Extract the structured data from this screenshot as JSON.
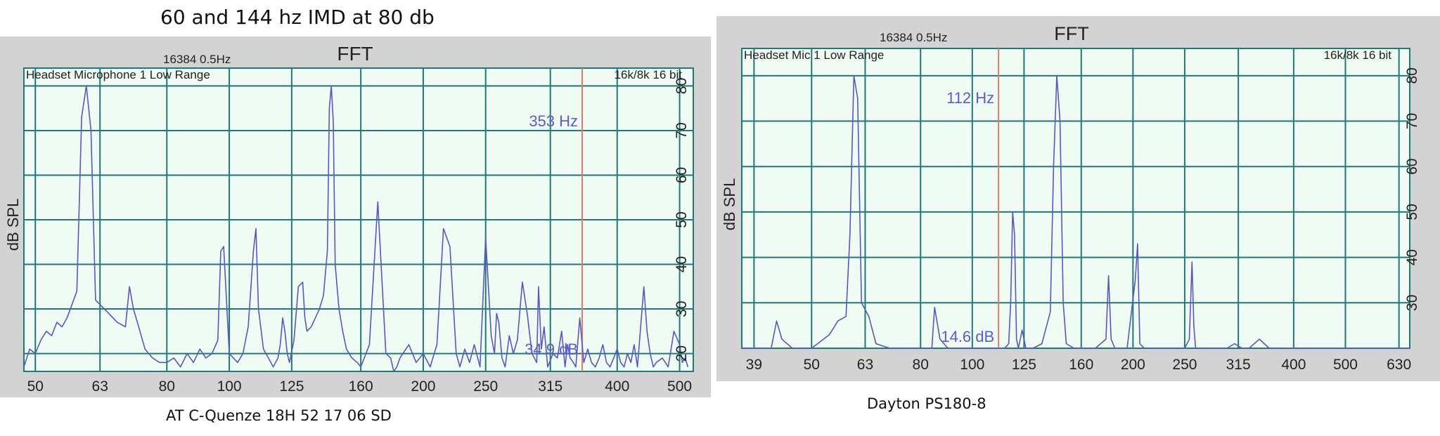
{
  "figure_title": "60 and 144 hz IMD at 80 db",
  "colors": {
    "background": "#f0fbf4",
    "grid": "#1f7a75",
    "trace": "#5757c8",
    "cursor": "#e07a6a",
    "readout": "#5b5bd6",
    "frame": "#d3d3d3"
  },
  "chart_data": [
    {
      "type": "line",
      "title": "FFT",
      "header": "16384  0.5Hz",
      "inner_label": "Headset Microphone 1 Low Range",
      "inner_right_label": "16k/8k 16 bit",
      "ylabel": "dB SPL",
      "xlabel": "",
      "x_scale": "log",
      "xlim": [
        48,
        525
      ],
      "ylim": [
        16,
        84
      ],
      "x_ticks": [
        50,
        63,
        80,
        100,
        125,
        160,
        200,
        250,
        315,
        400,
        500
      ],
      "x_tick_labels": [
        "50",
        "63",
        "80",
        "100",
        "125",
        "160",
        "200",
        "250",
        "315",
        "400",
        "500"
      ],
      "y_ticks": [
        20,
        30,
        40,
        50,
        60,
        70,
        80
      ],
      "y_tick_labels": [
        "20",
        "30",
        "40",
        "50",
        "60",
        "70",
        "80"
      ],
      "cursor": {
        "x": 353,
        "freq_label": "353 Hz",
        "level_label": "34.9 dB"
      },
      "caption": "AT C-Quenze 18H 52 17 06 SD",
      "series": [
        {
          "x": [
            48,
            49,
            50,
            51,
            52,
            53,
            54,
            55,
            56,
            57,
            58,
            59,
            60,
            61,
            62,
            63,
            65,
            67,
            69,
            70,
            71,
            72,
            74,
            76,
            78,
            80,
            82,
            84,
            86,
            88,
            90,
            92,
            94,
            96,
            97,
            98,
            100,
            103,
            105,
            107,
            109,
            110,
            111,
            113,
            115,
            117,
            119,
            120,
            121,
            122,
            123,
            124,
            126,
            128,
            130,
            131,
            132,
            134,
            136,
            138,
            140,
            142,
            143,
            144,
            145,
            146,
            148,
            150,
            152,
            155,
            158,
            160,
            165,
            170,
            175,
            178,
            180,
            182,
            184,
            190,
            195,
            200,
            205,
            210,
            215,
            220,
            225,
            228,
            232,
            236,
            240,
            245,
            250,
            255,
            258,
            260,
            262,
            265,
            268,
            272,
            276,
            280,
            285,
            290,
            295,
            300,
            302,
            305,
            308,
            312,
            318,
            323,
            328,
            332,
            335,
            338,
            342,
            345,
            350,
            355,
            360,
            365,
            370,
            375,
            380,
            385,
            390,
            395,
            400,
            405,
            410,
            415,
            420,
            425,
            430,
            440,
            445,
            450,
            455,
            460,
            470,
            480,
            490,
            500,
            505,
            510,
            515
          ],
          "y": [
            17,
            21,
            20,
            23,
            25,
            24,
            27,
            26,
            28,
            31,
            34,
            73,
            80,
            70,
            32,
            31,
            29,
            27,
            26,
            35,
            30,
            27,
            21,
            19,
            18,
            18,
            19,
            17,
            20,
            18,
            21,
            19,
            20,
            23,
            43,
            44,
            20,
            18,
            20,
            26,
            43,
            48,
            30,
            21,
            19,
            17,
            19,
            22,
            28,
            25,
            20,
            18,
            23,
            35,
            36,
            28,
            25,
            26,
            28,
            30,
            33,
            43,
            75,
            80,
            72,
            40,
            30,
            25,
            21,
            19,
            18,
            17,
            22,
            54,
            20,
            19,
            16,
            17,
            19,
            22,
            18,
            20,
            17,
            22,
            48,
            44,
            20,
            17,
            21,
            18,
            22,
            17,
            46,
            24,
            20,
            29,
            27,
            19,
            17,
            24,
            20,
            23,
            36,
            29,
            20,
            18,
            35,
            21,
            26,
            17,
            20,
            19,
            25,
            17,
            22,
            19,
            18,
            17,
            28,
            18,
            21,
            18,
            17,
            19,
            22,
            18,
            17,
            19,
            21,
            18,
            17,
            20,
            18,
            22,
            17,
            35,
            25,
            20,
            17,
            18,
            19,
            17,
            25,
            22,
            18,
            19,
            17
          ]
        }
      ]
    },
    {
      "type": "line",
      "title": "FFT",
      "header": "16384  0.5Hz",
      "inner_label": "Headset Mic 1 Low Range",
      "inner_right_label": "16k/8k 16 bit",
      "ylabel": "dB SPL",
      "xlabel": "",
      "x_scale": "log",
      "xlim": [
        37,
        660
      ],
      "ylim": [
        20,
        86
      ],
      "x_ticks": [
        39,
        50,
        63,
        80,
        100,
        125,
        160,
        200,
        250,
        315,
        400,
        500,
        630
      ],
      "x_tick_labels": [
        "39",
        "50",
        "63",
        "80",
        "100",
        "125",
        "160",
        "200",
        "250",
        "315",
        "400",
        "500",
        "630"
      ],
      "y_ticks": [
        30,
        40,
        50,
        60,
        70,
        80
      ],
      "y_tick_labels": [
        "30",
        "40",
        "50",
        "60",
        "70",
        "80"
      ],
      "cursor": {
        "x": 112,
        "freq_label": "112 Hz",
        "level_label": "14.6 dB"
      },
      "caption": "Dayton PS180-8",
      "series": [
        {
          "x": [
            37,
            40,
            42,
            43,
            44,
            46,
            50,
            54,
            56,
            58,
            59,
            60,
            61,
            62,
            64,
            66,
            70,
            75,
            80,
            84,
            85,
            87,
            90,
            95,
            100,
            105,
            110,
            113,
            115,
            117,
            118,
            119,
            120,
            121,
            122,
            124,
            126,
            130,
            135,
            140,
            142,
            144,
            146,
            148,
            150,
            155,
            160,
            170,
            178,
            180,
            182,
            185,
            195,
            202,
            204,
            206,
            210,
            220,
            240,
            250,
            255,
            258,
            260,
            262,
            265,
            270,
            290,
            300,
            310,
            320,
            330,
            345,
            360,
            400,
            450,
            500,
            560,
            630,
            660
          ],
          "y": [
            20,
            20,
            20,
            26,
            22,
            20,
            20,
            23,
            26,
            27,
            45,
            80,
            75,
            30,
            27,
            21,
            20,
            20,
            20,
            20,
            29,
            22,
            20,
            20,
            20,
            20,
            20,
            20,
            20,
            21,
            30,
            50,
            45,
            22,
            20,
            24,
            20,
            20,
            21,
            28,
            60,
            80,
            70,
            30,
            21,
            20,
            20,
            20,
            22,
            36,
            22,
            20,
            20,
            35,
            43,
            21,
            20,
            20,
            20,
            20,
            22,
            39,
            25,
            20,
            20,
            20,
            20,
            20,
            21,
            20,
            20,
            22,
            20,
            20,
            20,
            20,
            20,
            20,
            20
          ]
        }
      ]
    }
  ]
}
